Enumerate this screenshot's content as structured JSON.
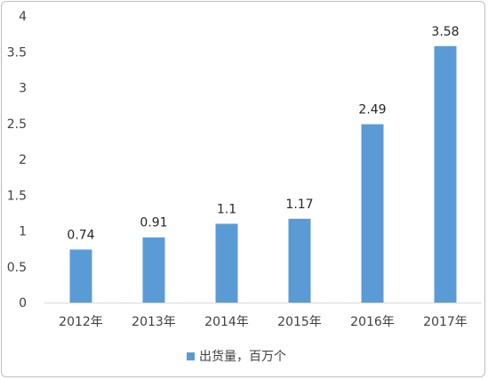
{
  "chart_data": {
    "type": "bar",
    "categories": [
      "2012年",
      "2013年",
      "2014年",
      "2015年",
      "2016年",
      "2017年"
    ],
    "series": [
      {
        "name": "出货量，百万个",
        "values": [
          0.74,
          0.91,
          1.1,
          1.17,
          2.49,
          3.58
        ]
      }
    ],
    "data_labels": [
      "0.74",
      "0.91",
      "1.1",
      "1.17",
      "2.49",
      "3.58"
    ],
    "ylim": [
      0,
      4
    ],
    "y_ticks": [
      "0",
      "0.5",
      "1",
      "1.5",
      "2",
      "2.5",
      "3",
      "3.5",
      "4"
    ],
    "y_tick_values": [
      0,
      0.5,
      1,
      1.5,
      2,
      2.5,
      3,
      3.5,
      4
    ],
    "grid": false,
    "legend_position": "bottom",
    "bar_color": "#5b9bd5"
  }
}
